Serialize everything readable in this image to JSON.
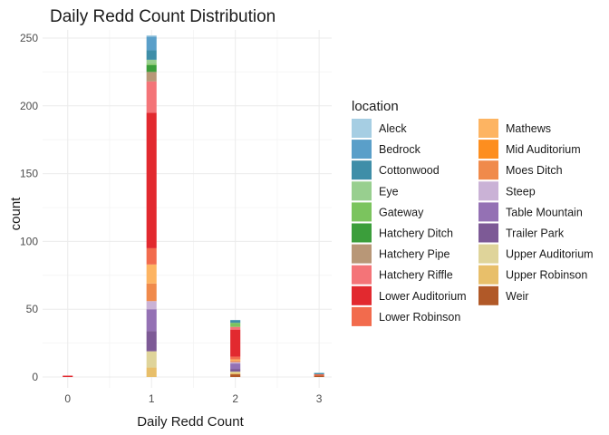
{
  "chart_data": {
    "type": "bar",
    "stacked": true,
    "title": "Daily Redd Count Distribution",
    "xlabel": "Daily Redd Count",
    "ylabel": "count",
    "xlim": [
      -0.3,
      3.15
    ],
    "ylim": [
      -8,
      256
    ],
    "x_ticks": [
      0,
      1,
      2,
      3
    ],
    "y_ticks": [
      0,
      50,
      100,
      150,
      200,
      250
    ],
    "grid": true,
    "legend_title": "location",
    "legend_position": "right",
    "categories": [
      0,
      1,
      2,
      3
    ],
    "series": [
      {
        "name": "Aleck",
        "color": "#a6cee3",
        "values": [
          0,
          1,
          0,
          0
        ]
      },
      {
        "name": "Bedrock",
        "color": "#5a9fc9",
        "values": [
          0,
          10,
          0,
          0
        ]
      },
      {
        "name": "Cottonwood",
        "color": "#3f8ea8",
        "values": [
          0,
          7,
          2,
          1
        ]
      },
      {
        "name": "Eye",
        "color": "#98cf8f",
        "values": [
          0,
          3,
          0,
          0
        ]
      },
      {
        "name": "Gateway",
        "color": "#7bc45e",
        "values": [
          0,
          1,
          3,
          0
        ]
      },
      {
        "name": "Hatchery Ditch",
        "color": "#3b9e3b",
        "values": [
          0,
          5,
          0,
          0
        ]
      },
      {
        "name": "Hatchery Pipe",
        "color": "#b89777",
        "values": [
          0,
          7,
          0,
          0
        ]
      },
      {
        "name": "Hatchery Riffle",
        "color": "#f47478",
        "values": [
          0,
          23,
          2,
          0
        ]
      },
      {
        "name": "Lower Auditorium",
        "color": "#e2292f",
        "values": [
          1,
          100,
          20,
          0
        ]
      },
      {
        "name": "Lower Robinson",
        "color": "#f26b4d",
        "values": [
          0,
          12,
          2,
          1
        ]
      },
      {
        "name": "Mathews",
        "color": "#fdb462",
        "values": [
          0,
          14,
          1,
          0
        ]
      },
      {
        "name": "Mid Auditorium",
        "color": "#fd8e1f",
        "values": [
          0,
          0,
          0,
          0
        ]
      },
      {
        "name": "Moes Ditch",
        "color": "#f08a4b",
        "values": [
          0,
          13,
          1,
          0
        ]
      },
      {
        "name": "Steep",
        "color": "#cab2d6",
        "values": [
          0,
          6,
          1,
          0
        ]
      },
      {
        "name": "Table Mountain",
        "color": "#9471b4",
        "values": [
          0,
          16,
          4,
          0
        ]
      },
      {
        "name": "Trailer Park",
        "color": "#7d5a96",
        "values": [
          0,
          15,
          2,
          0
        ]
      },
      {
        "name": "Upper Auditorium",
        "color": "#dfd49a",
        "values": [
          0,
          12,
          1,
          0
        ]
      },
      {
        "name": "Upper Robinson",
        "color": "#e8bf6a",
        "values": [
          0,
          7,
          1,
          0
        ]
      },
      {
        "name": "Weir",
        "color": "#b15928",
        "values": [
          0,
          0,
          2,
          1
        ]
      }
    ]
  }
}
